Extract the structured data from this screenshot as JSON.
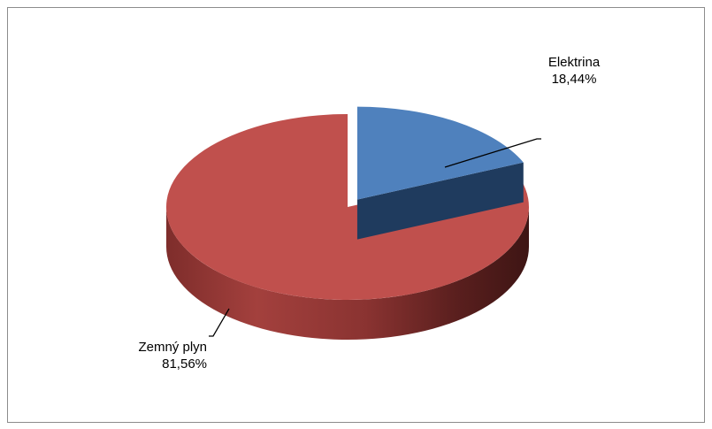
{
  "chart_data": {
    "type": "pie",
    "style": "3d-exploded",
    "categories": [
      "Elektrina",
      "Zemný plyn"
    ],
    "values": [
      18.44,
      81.56
    ],
    "value_labels": [
      "18,44%",
      "81,56%"
    ],
    "colors": [
      "#4f81bd",
      "#c0504d"
    ],
    "title": "",
    "legend": "none"
  }
}
